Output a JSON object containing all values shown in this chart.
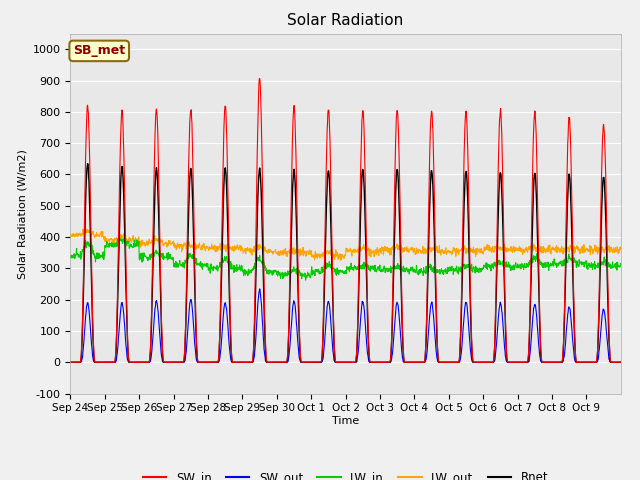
{
  "title": "Solar Radiation",
  "xlabel": "Time",
  "ylabel": "Solar Radiation (W/m2)",
  "ylim": [
    -100,
    1050
  ],
  "yticks": [
    -100,
    0,
    100,
    200,
    300,
    400,
    500,
    600,
    700,
    800,
    900,
    1000
  ],
  "fig_bg_color": "#f0f0f0",
  "plot_bg_color": "#e8e8e8",
  "grid_color": "#ffffff",
  "annotation_text": "SB_met",
  "annotation_bg": "#ffffcc",
  "annotation_border": "#8B6914",
  "colors": {
    "SW_in": "#ff0000",
    "SW_out": "#0000ff",
    "LW_in": "#00cc00",
    "LW_out": "#ffa500",
    "Rnet": "#000000"
  },
  "n_days": 16,
  "xtick_labels": [
    "Sep 24",
    "Sep 25",
    "Sep 26",
    "Sep 27",
    "Sep 28",
    "Sep 29",
    "Sep 30",
    "Oct 1",
    "Oct 2",
    "Oct 3",
    "Oct 4",
    "Oct 5",
    "Oct 6",
    "Oct 7",
    "Oct 8",
    "Oct 9"
  ],
  "SW_in_peaks": [
    820,
    805,
    805,
    810,
    820,
    910,
    815,
    807,
    805,
    805,
    805,
    802,
    803,
    800,
    780,
    760
  ],
  "SW_out_peaks": [
    190,
    188,
    195,
    200,
    190,
    230,
    195,
    195,
    192,
    190,
    190,
    192,
    190,
    185,
    175,
    170
  ],
  "LW_in_base": [
    340,
    375,
    335,
    310,
    300,
    290,
    280,
    290,
    300,
    295,
    290,
    295,
    305,
    310,
    315,
    308
  ],
  "LW_in_day": [
    380,
    390,
    350,
    340,
    330,
    330,
    295,
    310,
    310,
    305,
    300,
    308,
    320,
    335,
    330,
    320
  ],
  "LW_out_base": [
    405,
    390,
    380,
    370,
    365,
    355,
    350,
    340,
    355,
    360,
    355,
    355,
    360,
    360,
    360,
    360
  ],
  "LW_out_day": [
    420,
    400,
    390,
    375,
    370,
    365,
    355,
    350,
    365,
    365,
    362,
    362,
    365,
    365,
    362,
    362
  ],
  "Rnet_peaks": [
    635,
    625,
    618,
    620,
    620,
    618,
    613,
    612,
    618,
    617,
    612,
    610,
    608,
    605,
    600,
    592
  ]
}
